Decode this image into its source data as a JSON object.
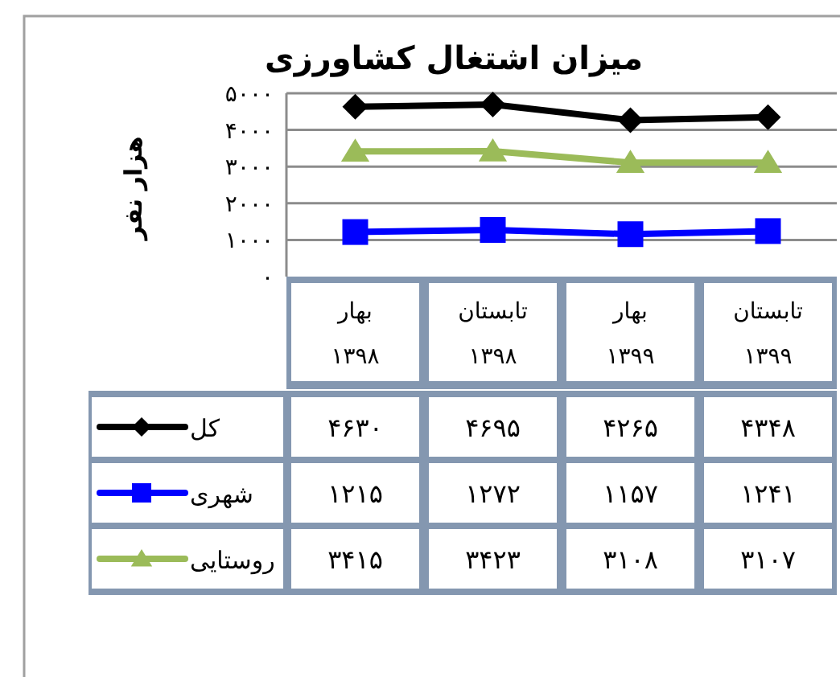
{
  "chart_data": {
    "type": "line",
    "title": "میزان اشتغال کشاورزی",
    "ylabel": "هزار نفر",
    "categories": [
      "بهار ۱۳۹۸",
      "تابستان ۱۳۹۸",
      "بهار ۱۳۹۹",
      "تابستان ۱۳۹۹"
    ],
    "series": [
      {
        "name": "کل",
        "color": "#000000",
        "marker": "diamond",
        "values": [
          4630,
          4695,
          4265,
          4348
        ],
        "value_labels": [
          "۴۶۳۰",
          "۴۶۹۵",
          "۴۲۶۵",
          "۴۳۴۸"
        ]
      },
      {
        "name": "شهری",
        "color": "#0000ff",
        "marker": "square",
        "values": [
          1215,
          1272,
          1157,
          1241
        ],
        "value_labels": [
          "۱۲۱۵",
          "۱۲۷۲",
          "۱۱۵۷",
          "۱۲۴۱"
        ]
      },
      {
        "name": "روستایی",
        "color": "#9bbb59",
        "marker": "triangle",
        "values": [
          3415,
          3423,
          3108,
          3107
        ],
        "value_labels": [
          "۳۴۱۵",
          "۳۴۲۳",
          "۳۱۰۸",
          "۳۱۰۷"
        ]
      }
    ],
    "ylim": [
      0,
      5000
    ],
    "yticks": [
      {
        "value": 0,
        "label": "۰"
      },
      {
        "value": 1000,
        "label": "۱۰۰۰"
      },
      {
        "value": 2000,
        "label": "۲۰۰۰"
      },
      {
        "value": 3000,
        "label": "۳۰۰۰"
      },
      {
        "value": 4000,
        "label": "۴۰۰۰"
      },
      {
        "value": 5000,
        "label": "۵۰۰۰"
      }
    ],
    "grid": "y",
    "legend": "bottom left",
    "line_style": "solid"
  }
}
